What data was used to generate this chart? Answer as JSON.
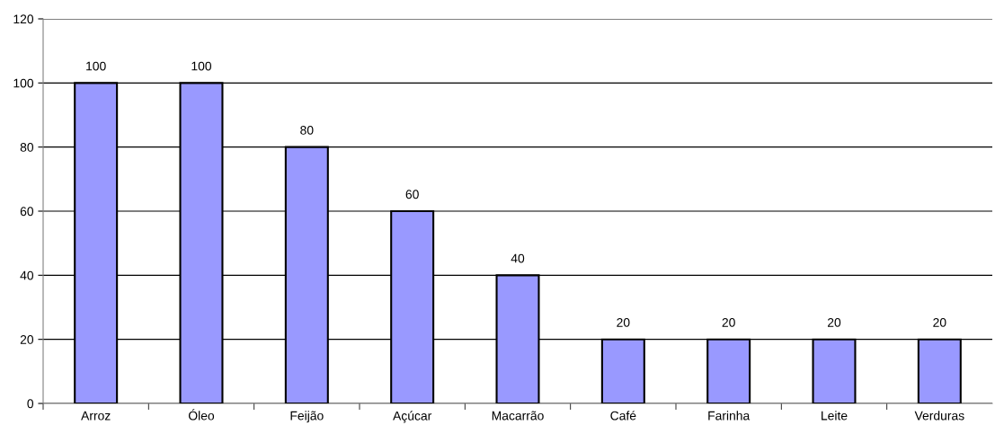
{
  "chart_data": {
    "type": "bar",
    "categories": [
      "Arroz",
      "Óleo",
      "Feijão",
      "Açúcar",
      "Macarrão",
      "Café",
      "Farinha",
      "Leite",
      "Verduras"
    ],
    "values": [
      100,
      100,
      80,
      60,
      40,
      20,
      20,
      20,
      20
    ],
    "color": "#9999ff",
    "ylim": [
      0,
      120
    ],
    "yticks": [
      0,
      20,
      40,
      60,
      80,
      100,
      120
    ],
    "grid": "y",
    "data_labels": true,
    "legend": false
  }
}
